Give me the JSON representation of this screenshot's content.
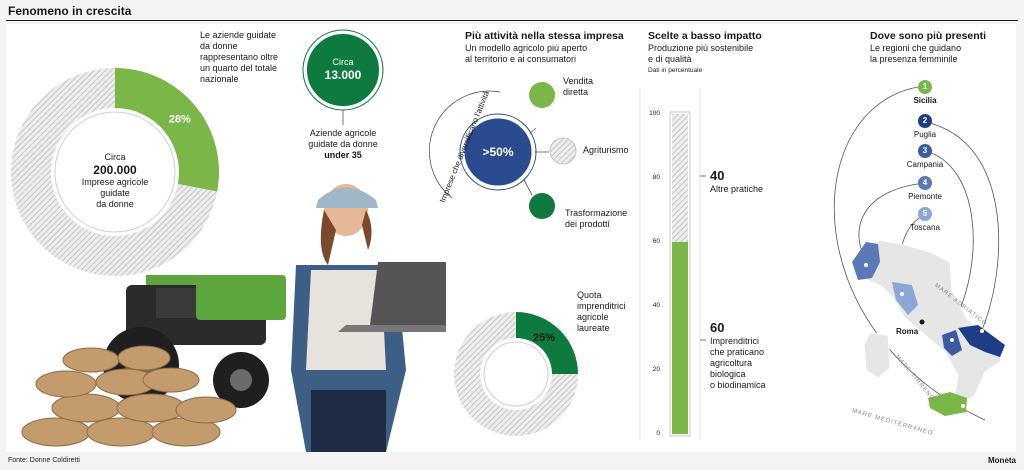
{
  "header": {
    "title": "Fenomeno in crescita"
  },
  "donut_main": {
    "caption": [
      "Le aziende guidate",
      "da donne",
      "rappresentano oltre",
      "un quarto del totale",
      "nazionale"
    ],
    "percent_label": "28%",
    "center_prefix": "Circa",
    "center_value": "200.000",
    "center_text": [
      "Imprese agricole",
      "guidate",
      "da donne"
    ]
  },
  "young": {
    "circle_prefix": "Circa",
    "circle_value": "13.000",
    "caption": [
      "Aziende agricole",
      "guidate da donne"
    ],
    "caption_bold": "under 35"
  },
  "activities": {
    "title": "Più attività nella stessa impresa",
    "subtitle": [
      "Un modello agricolo più aperto",
      "al territorio e ai consumatori"
    ],
    "center_value": ">50%",
    "arc_label": "Imprese che diversificano l'attività",
    "items": [
      {
        "label_lines": [
          "Vendita",
          "diretta"
        ]
      },
      {
        "label_lines": [
          "Agriturismo"
        ]
      },
      {
        "label_lines": [
          "Trasformazione",
          "dei prodotti"
        ]
      }
    ]
  },
  "graduates": {
    "caption": [
      "Quota",
      "imprenditrici",
      "agricole",
      "laureate"
    ],
    "percent_label": "25%"
  },
  "impact": {
    "title": "Scelte a basso impatto",
    "subtitle": [
      "Produzione più sostenibile",
      "e di qualità"
    ],
    "unit": "Dati in percentuale",
    "top_value": "40",
    "top_label": "Altre pratiche",
    "bottom_value": "60",
    "bottom_label": [
      "Imprenditrici",
      "che praticano",
      "agricoltura",
      "biologica",
      "o biodinamica"
    ]
  },
  "regions": {
    "title": "Dove sono più presenti",
    "subtitle": [
      "Le regioni che guidano",
      "la presenza femminile"
    ],
    "items": [
      {
        "rank": "1",
        "name": "Sicilia",
        "color": "#7ab648"
      },
      {
        "rank": "2",
        "name": "Puglia",
        "color": "#1f3d86"
      },
      {
        "rank": "3",
        "name": "Campania",
        "color": "#3a5aa3"
      },
      {
        "rank": "4",
        "name": "Piemonte",
        "color": "#5b78b8"
      },
      {
        "rank": "5",
        "name": "Toscana",
        "color": "#8ca6d6"
      }
    ],
    "map_labels": {
      "rome": "Roma",
      "adriatic": "MARE ADRIATICO",
      "tyrrhenian": "MARE TIRRENO",
      "mediterranean": "MARE MEDITERRANEO"
    }
  },
  "footer": {
    "source": "Fonte: Donne Coldiretti",
    "brand": "Moneta"
  },
  "chart_data": [
    {
      "type": "pie",
      "title": "",
      "categories": [
        "Aziende guidate da donne",
        "Altre"
      ],
      "values": [
        28,
        72
      ]
    },
    {
      "type": "pie",
      "title": "",
      "categories": [
        "Imprenditrici agricole laureate",
        "Altre"
      ],
      "values": [
        25,
        75
      ]
    },
    {
      "type": "bar",
      "title": "Scelte a basso impatto",
      "ylabel": "Dati in percentuale",
      "ylim": [
        0,
        100
      ],
      "yticks": [
        "0",
        "20",
        "40",
        "60",
        "80",
        "100"
      ],
      "categories": [
        "Imprenditrici"
      ],
      "series": [
        {
          "name": "Imprenditrici che praticano agricoltura biologica o biodinamica",
          "values": [
            60
          ]
        },
        {
          "name": "Altre pratiche",
          "values": [
            40
          ]
        }
      ]
    }
  ],
  "colors": {
    "green": "#7ab648",
    "dark_green": "#0e7a3f",
    "navy": "#2c4a8f",
    "hatch": "#c8c8c8"
  }
}
